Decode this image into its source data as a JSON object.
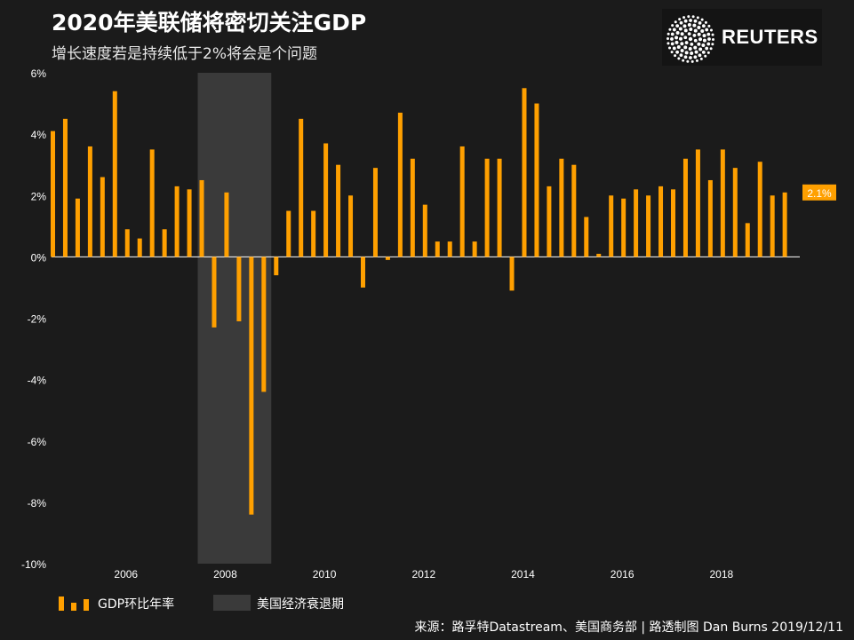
{
  "title": "2020年美联储将密切关注GDP",
  "subtitle": "增长速度若是持续低于2%将会是个问题",
  "logo": {
    "text": "REUTERS",
    "icon": "reuters-dot-logo-icon"
  },
  "colors": {
    "background": "#1b1b1b",
    "bar": "#ffa000",
    "recession": "#3a3a3a",
    "text": "#ffffff"
  },
  "legend": {
    "gdp_label": "GDP环比年率",
    "recession_label": "美国经济衰退期"
  },
  "source": "来源：路孚特Datastream、美国商务部 | 路透制图 Dan Burns 2019/12/11",
  "chart_data": {
    "type": "bar",
    "ylim": [
      -10,
      6
    ],
    "y_ticks": [
      {
        "value": 6,
        "label": "6%"
      },
      {
        "value": 4,
        "label": "4%"
      },
      {
        "value": 2,
        "label": "2%"
      },
      {
        "value": 0,
        "label": "0%"
      },
      {
        "value": -2,
        "label": "-2%"
      },
      {
        "value": -4,
        "label": "-4%"
      },
      {
        "value": -6,
        "label": "-6%"
      },
      {
        "value": -8,
        "label": "-8%"
      },
      {
        "value": -10,
        "label": "-10%"
      }
    ],
    "x_ticks": [
      "2006",
      "2008",
      "2010",
      "2012",
      "2014",
      "2016",
      "2018"
    ],
    "x_tick_years": [
      2006,
      2008,
      2010,
      2012,
      2014,
      2016,
      2018
    ],
    "series": [
      {
        "name": "GDP环比年率",
        "start": "2005Q1",
        "values": [
          4.1,
          4.5,
          1.9,
          3.6,
          2.6,
          5.4,
          0.9,
          0.6,
          3.5,
          0.9,
          2.3,
          2.2,
          2.5,
          -2.3,
          2.1,
          -2.1,
          -8.4,
          -4.4,
          -0.6,
          1.5,
          4.5,
          1.5,
          3.7,
          3.0,
          2.0,
          -1.0,
          2.9,
          -0.1,
          4.7,
          3.2,
          1.7,
          0.5,
          0.5,
          3.6,
          0.5,
          3.2,
          3.2,
          -1.1,
          5.5,
          5.0,
          2.3,
          3.2,
          3.0,
          1.3,
          0.1,
          2.0,
          1.9,
          2.2,
          2.0,
          2.3,
          2.2,
          3.2,
          3.5,
          2.5,
          3.5,
          2.9,
          1.1,
          3.1,
          2.0,
          2.1
        ]
      }
    ],
    "recession": {
      "label": "美国经济衰退期",
      "start": "2008Q1",
      "end": "2009Q2"
    },
    "last_value_label": "2.1%"
  }
}
